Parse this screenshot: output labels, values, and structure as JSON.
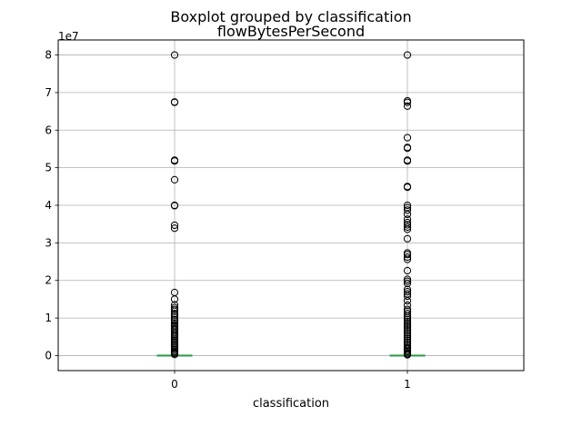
{
  "chart_data": {
    "type": "boxplot",
    "suptitle": "Boxplot grouped by classification",
    "title": "flowBytesPerSecond",
    "xlabel": "classification",
    "ylabel": "",
    "offset_text": "1e7",
    "y_scale": 10000000,
    "ylim": [
      -4000000,
      84000000
    ],
    "y_ticks": [
      0,
      10000000,
      20000000,
      30000000,
      40000000,
      50000000,
      60000000,
      70000000,
      80000000
    ],
    "y_tick_labels": [
      "0",
      "1",
      "2",
      "3",
      "4",
      "5",
      "6",
      "7",
      "8"
    ],
    "grid": true,
    "categories": [
      "0",
      "1"
    ],
    "series": [
      {
        "category": "0",
        "box": {
          "whisker_low": 0,
          "q1": 0,
          "median": 0,
          "q3": 0,
          "whisker_high": 10000
        },
        "outliers": [
          80000000,
          67500000,
          67400000,
          52000000,
          51800000,
          46800000,
          40000000,
          39900000,
          34700000,
          33900000,
          16800000,
          15000000,
          13500000,
          12800000,
          12300000,
          11800000,
          11200000,
          10800000,
          10200000,
          9600000,
          9200000,
          8700000,
          8200000,
          7800000,
          7300000,
          6900000,
          6500000,
          6000000,
          5600000,
          5200000,
          4800000,
          4400000,
          4000000,
          3600000,
          3200000,
          2800000,
          2400000,
          2000000,
          1600000,
          1200000,
          900000,
          600000,
          300000
        ]
      },
      {
        "category": "1",
        "box": {
          "whisker_low": 0,
          "q1": 0,
          "median": 0,
          "q3": 0,
          "whisker_high": 10000
        },
        "outliers": [
          80000000,
          67800000,
          67400000,
          66400000,
          58000000,
          55400000,
          55200000,
          52000000,
          51800000,
          45000000,
          44800000,
          40000000,
          39400000,
          38700000,
          37600000,
          36300000,
          35400000,
          34800000,
          34200000,
          33600000,
          31100000,
          27300000,
          26900000,
          26200000,
          25600000,
          22600000,
          20300000,
          19800000,
          19200000,
          17600000,
          17000000,
          16400000,
          15800000,
          14600000,
          13400000,
          12300000,
          11800000,
          11200000,
          10600000,
          10100000,
          9600000,
          9100000,
          8600000,
          8100000,
          7600000,
          7100000,
          6600000,
          6100000,
          5600000,
          5100000,
          4600000,
          4100000,
          3600000,
          3100000,
          2600000,
          2100000,
          1800000,
          1400000,
          1100000,
          700000,
          400000,
          200000
        ]
      }
    ]
  }
}
